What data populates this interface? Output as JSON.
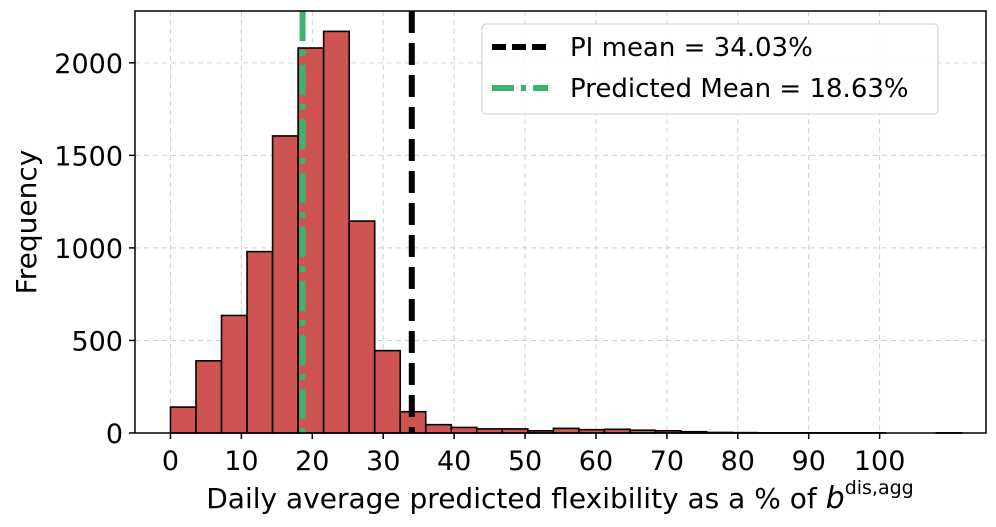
{
  "chart_data": {
    "type": "histogram",
    "title": "",
    "xlabel": "Daily average predicted flexibility as a % of ",
    "xlabel_math": {
      "base": "b",
      "superscript": "dis,agg"
    },
    "ylabel": "Frequency",
    "xlim": [
      -5,
      115
    ],
    "ylim": [
      0,
      2280
    ],
    "x_ticks": [
      0,
      10,
      20,
      30,
      40,
      50,
      60,
      70,
      80,
      90,
      100
    ],
    "y_ticks": [
      0,
      500,
      1000,
      1500,
      2000
    ],
    "grid": true,
    "bar_color": "#cd5450",
    "bar_edge_color": "#000000",
    "bins": [
      {
        "x0": 0.0,
        "x1": 3.6,
        "count": 140
      },
      {
        "x0": 3.6,
        "x1": 7.2,
        "count": 390
      },
      {
        "x0": 7.2,
        "x1": 10.8,
        "count": 635
      },
      {
        "x0": 10.8,
        "x1": 14.4,
        "count": 980
      },
      {
        "x0": 14.4,
        "x1": 18.0,
        "count": 1605
      },
      {
        "x0": 18.0,
        "x1": 21.6,
        "count": 2080
      },
      {
        "x0": 21.6,
        "x1": 25.2,
        "count": 2170
      },
      {
        "x0": 25.2,
        "x1": 28.8,
        "count": 1145
      },
      {
        "x0": 28.8,
        "x1": 32.4,
        "count": 445
      },
      {
        "x0": 32.4,
        "x1": 36.0,
        "count": 115
      },
      {
        "x0": 36.0,
        "x1": 39.6,
        "count": 45
      },
      {
        "x0": 39.6,
        "x1": 43.2,
        "count": 30
      },
      {
        "x0": 43.2,
        "x1": 46.8,
        "count": 22
      },
      {
        "x0": 46.8,
        "x1": 50.4,
        "count": 22
      },
      {
        "x0": 50.4,
        "x1": 54.0,
        "count": 12
      },
      {
        "x0": 54.0,
        "x1": 57.6,
        "count": 25
      },
      {
        "x0": 57.6,
        "x1": 61.2,
        "count": 18
      },
      {
        "x0": 61.2,
        "x1": 64.8,
        "count": 20
      },
      {
        "x0": 64.8,
        "x1": 68.4,
        "count": 15
      },
      {
        "x0": 68.4,
        "x1": 72.0,
        "count": 12
      },
      {
        "x0": 72.0,
        "x1": 75.6,
        "count": 7
      },
      {
        "x0": 75.6,
        "x1": 79.2,
        "count": 3
      },
      {
        "x0": 79.2,
        "x1": 82.8,
        "count": 2
      },
      {
        "x0": 82.8,
        "x1": 86.4,
        "count": 1
      },
      {
        "x0": 86.4,
        "x1": 90.0,
        "count": 1
      },
      {
        "x0": 90.0,
        "x1": 93.6,
        "count": 1
      },
      {
        "x0": 93.6,
        "x1": 97.2,
        "count": 1
      },
      {
        "x0": 97.2,
        "x1": 100.8,
        "count": 1
      },
      {
        "x0": 100.8,
        "x1": 104.4,
        "count": 0
      },
      {
        "x0": 104.4,
        "x1": 108.0,
        "count": 0
      },
      {
        "x0": 108.0,
        "x1": 111.6,
        "count": 1
      }
    ],
    "reference_lines": [
      {
        "name": "PI mean = 34.03%",
        "x": 34.03,
        "color": "#000000",
        "style": "dashed"
      },
      {
        "name": "Predicted Mean = 18.63%",
        "x": 18.63,
        "color": "#3cb371",
        "style": "dashdot"
      }
    ],
    "legend": {
      "location": "top-right",
      "entries": [
        "PI mean = 34.03%",
        "Predicted Mean = 18.63%"
      ]
    }
  }
}
